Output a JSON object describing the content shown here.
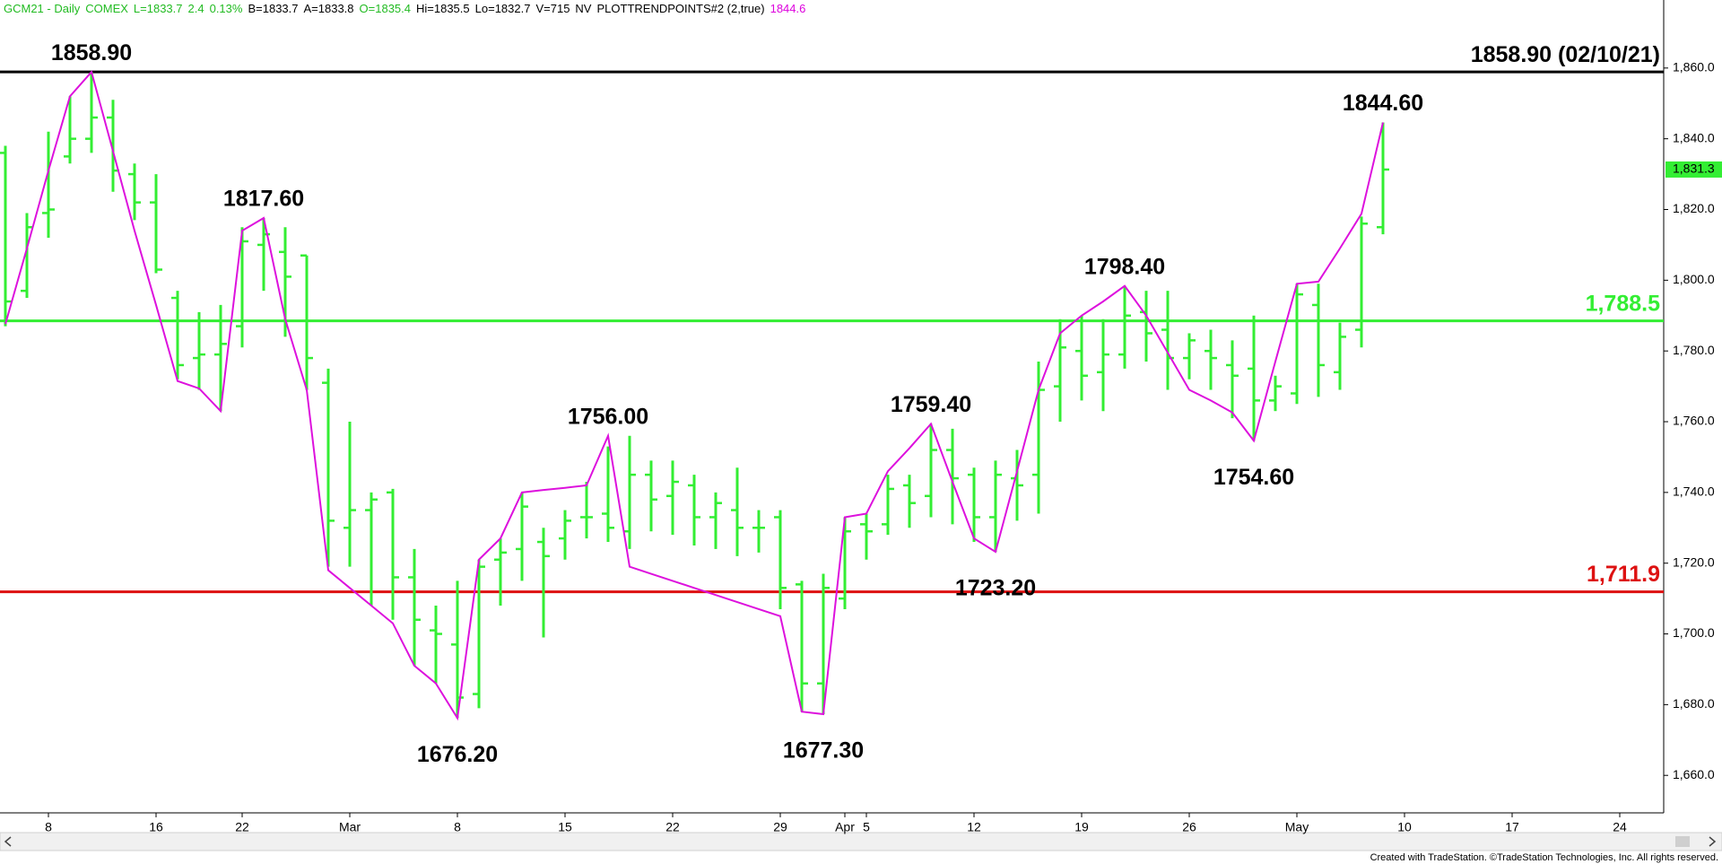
{
  "chart_data": {
    "type": "ohlc",
    "info": [
      {
        "text": "GCM21 - Daily",
        "color": "#22bb22"
      },
      {
        "text": "COMEX",
        "color": "#22bb22"
      },
      {
        "text": "L=1833.7",
        "color": "#22bb22"
      },
      {
        "text": "2.4",
        "color": "#22bb22"
      },
      {
        "text": "0.13%",
        "color": "#22bb22"
      },
      {
        "text": "B=1833.7",
        "color": "#000000"
      },
      {
        "text": "A=1833.8",
        "color": "#000000"
      },
      {
        "text": "O=1835.4",
        "color": "#22bb22"
      },
      {
        "text": "Hi=1835.5",
        "color": "#000000"
      },
      {
        "text": "Lo=1832.7",
        "color": "#000000"
      },
      {
        "text": "V=715",
        "color": "#000000"
      },
      {
        "text": "NV",
        "color": "#000000"
      },
      {
        "text": "PLOTTRENDPOINTS#2 (2,true)",
        "color": "#000000"
      },
      {
        "text": "1844.6",
        "color": "#dd00dd"
      }
    ],
    "categories": [
      null,
      null,
      "8",
      null,
      null,
      null,
      null,
      "16",
      null,
      null,
      null,
      "22",
      null,
      null,
      null,
      null,
      "Mar",
      null,
      null,
      null,
      null,
      "8",
      null,
      null,
      null,
      null,
      "15",
      null,
      null,
      null,
      null,
      "22",
      null,
      null,
      null,
      null,
      "29",
      null,
      null,
      "Apr",
      "5",
      null,
      null,
      null,
      null,
      "12",
      null,
      null,
      null,
      null,
      "19",
      null,
      null,
      null,
      null,
      "26",
      null,
      null,
      null,
      null,
      "May",
      null,
      null,
      null,
      null,
      "10",
      null,
      null,
      null,
      null,
      "17",
      null,
      null,
      null,
      null,
      "24",
      null
    ],
    "color": "#33ee33",
    "open": [
      1836,
      1797,
      1819,
      1835,
      1840,
      1846,
      1830,
      1822,
      1795,
      1778,
      1779,
      1787,
      1810,
      1808,
      1807,
      1771,
      1730,
      1735,
      1740,
      1716,
      1701,
      1697,
      1683,
      1721,
      1724,
      1726,
      1727,
      1733,
      1734,
      1729,
      1745,
      1739,
      1742,
      1733,
      1735,
      1730,
      1733,
      1714,
      1686,
      1710,
      1731,
      1731,
      1742,
      1739,
      1752,
      1745,
      1733,
      1744,
      1745,
      1770,
      1780,
      1774,
      1779,
      1791,
      1786,
      1778,
      1780,
      1776,
      1775,
      1766,
      1768,
      1793,
      1774,
      1786,
      1815,
      null,
      null,
      null,
      null,
      null,
      null,
      null,
      null,
      null,
      null,
      null,
      null
    ],
    "high": [
      1838,
      1819,
      1842,
      1852,
      1858.9,
      1851,
      1833,
      1830,
      1797,
      1791,
      1793,
      1815,
      1817.6,
      1815,
      1807,
      1775,
      1760,
      1740,
      1741,
      1724,
      1708,
      1715,
      1721,
      1727,
      1740,
      1730,
      1735,
      1743,
      1753,
      1756,
      1749,
      1749,
      1745,
      1740,
      1747,
      1735,
      1735,
      1715,
      1717,
      1733,
      1734,
      1745,
      1745,
      1759.4,
      1758,
      1747,
      1749,
      1752,
      1777,
      1789,
      1790,
      1789,
      1798.4,
      1797,
      1797,
      1785,
      1786,
      1783,
      1790,
      1773,
      1799,
      1799,
      1788,
      1818,
      1844.6,
      null,
      null,
      null,
      null,
      null,
      null,
      null,
      null,
      null,
      null,
      null,
      null
    ],
    "low": [
      1787,
      1795,
      1812,
      1833,
      1836,
      1825,
      1817,
      1802,
      1772,
      1769,
      1763,
      1781,
      1797,
      1784,
      1769,
      1719,
      1719,
      1708,
      1704,
      1691,
      1686,
      1676.2,
      1679,
      1708,
      1715,
      1699,
      1721,
      1727,
      1726,
      1724,
      1729,
      1728,
      1725,
      1724,
      1722,
      1723,
      1707,
      1678,
      1677.3,
      1707,
      1721,
      1728,
      1730,
      1733,
      1731,
      1726,
      1723.2,
      1732,
      1734,
      1760,
      1766,
      1763,
      1775,
      1777,
      1769,
      1772,
      1769,
      1761,
      1754.6,
      1763,
      1765,
      1767,
      1769,
      1781,
      1813,
      null,
      null,
      null,
      null,
      null,
      null,
      null,
      null,
      null,
      null,
      null,
      null
    ],
    "close": [
      1794,
      1815,
      1820,
      1840,
      1846,
      1831,
      1822,
      1803,
      1776,
      1779,
      1782,
      1811,
      1813,
      1801,
      1778,
      1732,
      1735,
      1738,
      1716,
      1704,
      1700,
      1682,
      1719,
      1723,
      1736,
      1722,
      1732,
      1733,
      1730,
      1745,
      1738,
      1743,
      1733,
      1737,
      1730,
      1730,
      1713,
      1686,
      1713,
      1729,
      1729,
      1741,
      1737,
      1752,
      1744,
      1733,
      1745,
      1742,
      1769,
      1781,
      1773,
      1779,
      1790,
      1785,
      1778,
      1783,
      1778,
      1773,
      1766,
      1770,
      1796,
      1776,
      1784,
      1816,
      1831.3,
      null,
      null,
      null,
      null,
      null,
      null,
      null,
      null,
      null,
      null,
      null,
      null
    ],
    "overlays": [
      {
        "type": "line",
        "color": "#dd11dd",
        "values": [
          1787.6,
          1809,
          1831,
          1852,
          1858.9,
          1836.5,
          1814,
          1793,
          1771.5,
          1769.4,
          1763,
          1814,
          1817.6,
          1789,
          1769,
          1718,
          1713,
          1708,
          1703,
          1691,
          1686,
          1676.2,
          1721,
          1727,
          1740,
          1740.7,
          1741.3,
          1742,
          1756,
          1719,
          1717,
          1715,
          1713,
          1711,
          1709,
          1707,
          1705,
          1678,
          1677.3,
          1733,
          1734,
          1746,
          1752.5,
          1759.4,
          1743,
          1727,
          1723.2,
          1746,
          1769,
          1785,
          1790,
          1794,
          1798.4,
          1790,
          1779.5,
          1769,
          1766,
          1762.6,
          1754.6,
          1777,
          1799,
          1799.6,
          1809,
          1818.8,
          1844.6,
          null,
          null,
          null,
          null,
          null,
          null,
          null,
          null,
          null,
          null,
          null,
          null
        ],
        "value_labels": [
          null,
          null,
          null,
          null,
          "1858.90",
          null,
          null,
          null,
          null,
          null,
          null,
          null,
          "1817.60",
          null,
          null,
          null,
          null,
          null,
          null,
          null,
          null,
          "1676.20",
          null,
          null,
          null,
          null,
          null,
          null,
          "1756.00",
          null,
          null,
          null,
          null,
          null,
          null,
          null,
          null,
          null,
          "1677.30",
          null,
          null,
          null,
          null,
          "1759.40",
          null,
          null,
          "1723.20",
          null,
          null,
          null,
          null,
          null,
          "1798.40",
          null,
          null,
          null,
          null,
          null,
          "1754.60",
          null,
          null,
          null,
          null,
          null,
          "1844.60",
          null,
          null,
          null,
          null,
          null,
          null,
          null,
          null,
          null,
          null,
          null,
          null
        ]
      }
    ],
    "hlines": [
      {
        "value": 1858.9,
        "color": "#000000",
        "label": "1858.90 (02/10/21)"
      },
      {
        "value": 1788.5,
        "color": "#33ee33",
        "label": "1,788.5"
      },
      {
        "value": 1711.9,
        "color": "#dd1111",
        "label": "1,711.9"
      }
    ],
    "last_price": {
      "value": 1831.3,
      "label": "1,831.3"
    },
    "ylim": [
      1649.4,
      1878.6
    ],
    "yticks": [
      {
        "value": 1660,
        "label": "1,660.0"
      },
      {
        "value": 1680,
        "label": "1,680.0"
      },
      {
        "value": 1700,
        "label": "1,700.0"
      },
      {
        "value": 1720,
        "label": "1,720.0"
      },
      {
        "value": 1740,
        "label": "1,740.0"
      },
      {
        "value": 1760,
        "label": "1,760.0"
      },
      {
        "value": 1780,
        "label": "1,780.0"
      },
      {
        "value": 1800,
        "label": "1,800.0"
      },
      {
        "value": 1820,
        "label": "1,820.0"
      },
      {
        "value": 1840,
        "label": "1,840.0"
      },
      {
        "value": 1860,
        "label": "1,860.0"
      }
    ],
    "footer": "Created with TradeStation. ©TradeStation Technologies, Inc. All rights reserved."
  }
}
